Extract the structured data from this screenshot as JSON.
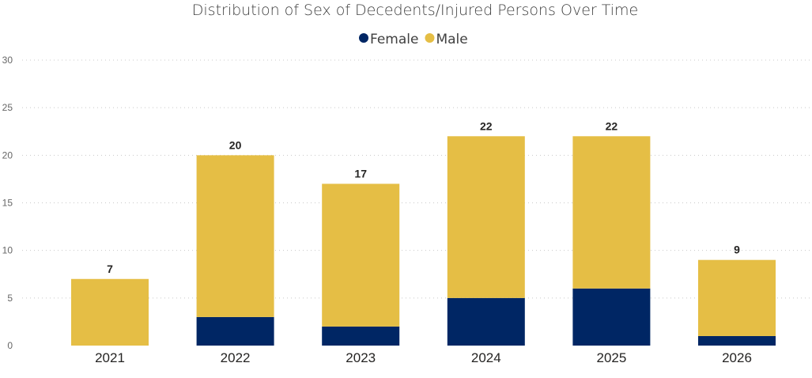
{
  "chart_data": {
    "type": "bar",
    "stacked": true,
    "title": "Distribution of Sex of Decedents/Injured Persons Over Time",
    "categories": [
      "2021",
      "2022",
      "2023",
      "2024",
      "2025",
      "2026"
    ],
    "series": [
      {
        "name": "Female",
        "color": "#002664",
        "values": [
          0,
          3,
          2,
          5,
          6,
          1
        ]
      },
      {
        "name": "Male",
        "color": "#E5BE45",
        "values": [
          7,
          17,
          15,
          17,
          16,
          8
        ]
      }
    ],
    "totals": [
      7,
      20,
      17,
      22,
      22,
      9
    ],
    "ylim": [
      0,
      30
    ],
    "yticks": [
      0,
      5,
      10,
      15,
      20,
      25,
      30
    ],
    "grid": true,
    "legend_position": "top-center"
  }
}
